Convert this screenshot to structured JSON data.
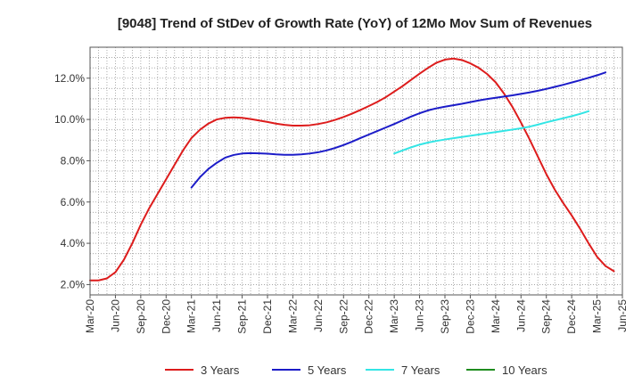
{
  "chart_data": {
    "type": "line",
    "title": "[9048]  Trend of StDev of Growth Rate (YoY) of 12Mo Mov Sum of Revenues",
    "xlabel": "",
    "ylabel": "",
    "ylim": [
      1.5,
      13.5
    ],
    "yticks": [
      2.0,
      4.0,
      6.0,
      8.0,
      10.0,
      12.0
    ],
    "ytick_labels": [
      "2.0%",
      "4.0%",
      "6.0%",
      "8.0%",
      "10.0%",
      "12.0%"
    ],
    "xtick_labels": [
      "Mar-20",
      "Jun-20",
      "Sep-20",
      "Dec-20",
      "Mar-21",
      "Jun-21",
      "Sep-21",
      "Dec-21",
      "Mar-22",
      "Jun-22",
      "Sep-22",
      "Dec-22",
      "Mar-23",
      "Jun-23",
      "Sep-23",
      "Dec-23",
      "Mar-24",
      "Jun-24",
      "Sep-24",
      "Dec-24",
      "Mar-25",
      "Jun-25"
    ],
    "x_start": "Mar-20",
    "grid": true,
    "legend_position": "bottom",
    "series": [
      {
        "name": "3 Years",
        "color": "#dd1c1c",
        "start_month": 0,
        "values": [
          2.2,
          2.2,
          2.3,
          2.6,
          3.2,
          4.0,
          4.9,
          5.7,
          6.4,
          7.1,
          7.8,
          8.5,
          9.1,
          9.5,
          9.8,
          10.0,
          10.08,
          10.1,
          10.08,
          10.02,
          9.95,
          9.88,
          9.8,
          9.74,
          9.7,
          9.7,
          9.72,
          9.78,
          9.86,
          9.98,
          10.12,
          10.28,
          10.46,
          10.65,
          10.85,
          11.08,
          11.35,
          11.62,
          11.92,
          12.22,
          12.5,
          12.75,
          12.9,
          12.95,
          12.88,
          12.72,
          12.5,
          12.2,
          11.8,
          11.25,
          10.6,
          9.85,
          9.05,
          8.2,
          7.35,
          6.6,
          5.95,
          5.35,
          4.7,
          4.0,
          3.35,
          2.9,
          2.65
        ]
      },
      {
        "name": "5 Years",
        "color": "#1c1cc8",
        "start_month": 12,
        "values": [
          6.7,
          7.2,
          7.6,
          7.9,
          8.15,
          8.28,
          8.35,
          8.37,
          8.36,
          8.34,
          8.31,
          8.29,
          8.29,
          8.31,
          8.35,
          8.41,
          8.5,
          8.62,
          8.76,
          8.92,
          9.1,
          9.27,
          9.44,
          9.61,
          9.78,
          9.96,
          10.14,
          10.3,
          10.44,
          10.54,
          10.62,
          10.69,
          10.76,
          10.84,
          10.92,
          10.99,
          11.05,
          11.11,
          11.17,
          11.24,
          11.31,
          11.39,
          11.48,
          11.58,
          11.68,
          11.79,
          11.9,
          12.02,
          12.14,
          12.28
        ]
      },
      {
        "name": "7 Years",
        "color": "#33e5e5",
        "start_month": 36,
        "values": [
          8.35,
          8.5,
          8.65,
          8.78,
          8.88,
          8.96,
          9.03,
          9.09,
          9.15,
          9.21,
          9.27,
          9.33,
          9.39,
          9.45,
          9.51,
          9.57,
          9.65,
          9.75,
          9.86,
          9.96,
          10.06,
          10.16,
          10.27,
          10.4
        ]
      },
      {
        "name": "10 Years",
        "color": "#1e8c1e",
        "start_month": 0,
        "values": []
      }
    ]
  }
}
